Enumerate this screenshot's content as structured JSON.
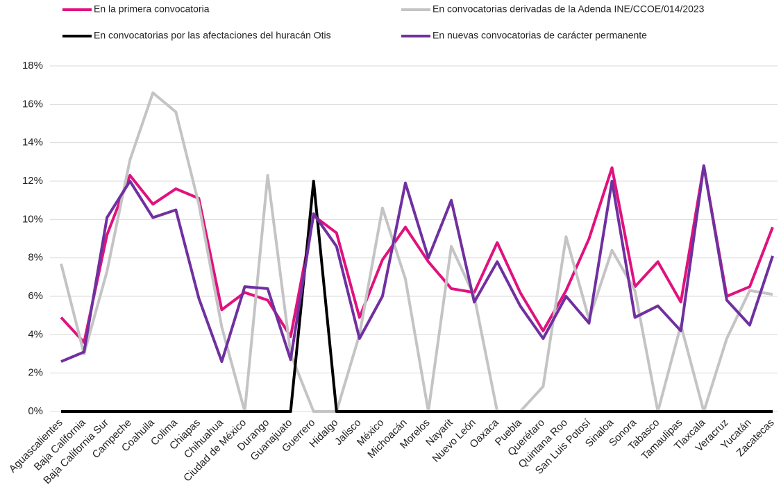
{
  "chart_data": {
    "type": "line",
    "categories": [
      "Aguascalientes",
      "Baja California",
      "Baja California Sur",
      "Campeche",
      "Coahuila",
      "Colima",
      "Chiapas",
      "Chihuahua",
      "Ciudad de México",
      "Durango",
      "Guanajuato",
      "Guerrero",
      "Hidalgo",
      "Jalisco",
      "México",
      "Michoacán",
      "Morelos",
      "Nayarit",
      "Nuevo León",
      "Oaxaca",
      "Puebla",
      "Querétaro",
      "Quintana Roo",
      "San Luis Potosí",
      "Sinaloa",
      "Sonora",
      "Tabasco",
      "Tamaulipas",
      "Tlaxcala",
      "Veracruz",
      "Yucatán",
      "Zacatecas"
    ],
    "series": [
      {
        "name": "En la primera convocatoria",
        "color": "#e0127e",
        "values": [
          4.9,
          3.6,
          9.2,
          12.3,
          10.8,
          11.6,
          11.1,
          5.3,
          6.2,
          5.8,
          3.9,
          10.2,
          9.3,
          4.9,
          7.9,
          9.6,
          7.8,
          6.4,
          6.2,
          8.8,
          6.2,
          4.2,
          6.3,
          9.0,
          12.7,
          6.5,
          7.8,
          5.7,
          12.8,
          6.0,
          6.5,
          9.6
        ]
      },
      {
        "name": "En convocatorias derivadas de la Adenda INE/CCOE/014/2023",
        "color": "#c4c4c4",
        "values": [
          7.7,
          3.0,
          7.3,
          13.1,
          16.6,
          15.6,
          10.8,
          4.4,
          0,
          12.3,
          3.0,
          0,
          0,
          4.0,
          10.6,
          6.9,
          0,
          8.6,
          6.0,
          0,
          0,
          1.3,
          9.1,
          4.8,
          8.4,
          6.3,
          0,
          4.5,
          0,
          3.8,
          6.3,
          6.1
        ]
      },
      {
        "name": "En convocatorias por las afectaciones del huracán Otis",
        "color": "#000000",
        "values": [
          0,
          0,
          0,
          0,
          0,
          0,
          0,
          0,
          0,
          0,
          0,
          12.0,
          0,
          0,
          0,
          0,
          0,
          0,
          0,
          0,
          0,
          0,
          0,
          0,
          0,
          0,
          0,
          0,
          0,
          0,
          0,
          0
        ]
      },
      {
        "name": "En nuevas convocatorias de carácter permanente",
        "color": "#7030a0",
        "values": [
          2.6,
          3.1,
          10.1,
          12.0,
          10.1,
          10.5,
          5.9,
          2.6,
          6.5,
          6.4,
          2.7,
          10.3,
          8.6,
          3.8,
          6.0,
          11.9,
          8.0,
          11.0,
          5.7,
          7.8,
          5.5,
          3.8,
          6.0,
          4.6,
          12.0,
          4.9,
          5.5,
          4.2,
          12.8,
          5.8,
          4.5,
          8.1
        ]
      }
    ],
    "ylim": [
      0,
      18
    ],
    "yticks": [
      {
        "value": 0,
        "label": "0%"
      },
      {
        "value": 2,
        "label": "2%"
      },
      {
        "value": 4,
        "label": "4%"
      },
      {
        "value": 6,
        "label": "6%"
      },
      {
        "value": 8,
        "label": "8%"
      },
      {
        "value": 10,
        "label": "10%"
      },
      {
        "value": 12,
        "label": "12%"
      },
      {
        "value": 14,
        "label": "14%"
      },
      {
        "value": 16,
        "label": "16%"
      },
      {
        "value": 18,
        "label": "18%"
      }
    ],
    "grid": true,
    "legend": "top"
  }
}
